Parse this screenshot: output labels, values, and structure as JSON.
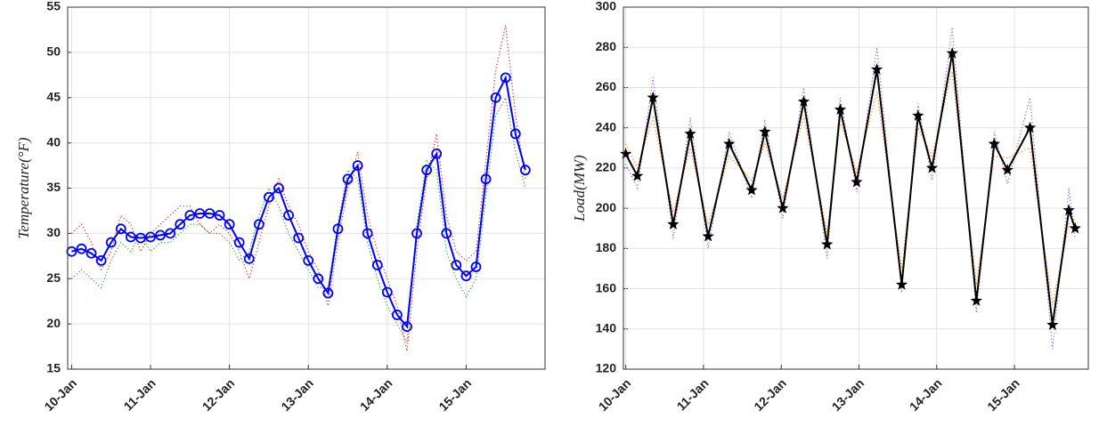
{
  "chart_data": [
    {
      "type": "line",
      "ylabel": "Temperature(°F)",
      "x": [
        10,
        10.125,
        10.25,
        10.375,
        10.5,
        10.625,
        10.75,
        10.875,
        11,
        11.125,
        11.25,
        11.375,
        11.5,
        11.625,
        11.75,
        11.875,
        12,
        12.125,
        12.25,
        12.375,
        12.5,
        12.625,
        12.75,
        12.875,
        13,
        13.125,
        13.25,
        13.375,
        13.5,
        13.625,
        13.75,
        13.875,
        14,
        14.125,
        14.25,
        14.375,
        14.5,
        14.625,
        14.75,
        14.875,
        15,
        15.125,
        15.25,
        15.375,
        15.5,
        15.625,
        15.75
      ],
      "series": [
        {
          "color": "#d62728",
          "linestyle": "dotted",
          "marker": "none",
          "values": [
            30,
            31,
            29,
            26,
            28,
            32,
            31,
            28,
            30,
            31,
            32,
            33,
            33,
            31,
            30,
            31,
            30,
            28,
            25,
            29,
            33,
            36,
            33,
            31,
            28,
            26,
            22,
            29,
            35,
            39,
            32,
            28,
            25,
            22,
            17,
            28,
            36,
            41,
            32,
            28,
            27,
            28,
            38,
            48,
            53,
            43,
            36
          ]
        },
        {
          "color": "#2ca02c",
          "linestyle": "dotted",
          "marker": "none",
          "values": [
            25,
            26,
            25,
            24,
            27,
            29,
            28,
            30,
            28,
            29,
            29,
            30,
            31,
            31,
            30,
            30,
            29,
            27,
            28,
            32,
            35,
            33,
            30,
            28,
            26,
            24,
            24,
            31,
            37,
            36,
            29,
            25,
            22,
            20,
            18,
            31,
            38,
            37,
            28,
            25,
            23,
            25,
            34,
            43,
            45,
            39,
            35
          ]
        },
        {
          "color": "#0000ff",
          "linestyle": "solid",
          "marker": "circle",
          "values": [
            28,
            28.3,
            27.8,
            27,
            29,
            30.5,
            29.6,
            29.5,
            29.6,
            29.8,
            30,
            31,
            32,
            32.2,
            32.2,
            32,
            31,
            29,
            27.2,
            31,
            34,
            35,
            32,
            29.5,
            27,
            25,
            23.4,
            30.5,
            36,
            37.5,
            30,
            26.5,
            23.5,
            21,
            19.7,
            30,
            37,
            38.8,
            30,
            26.5,
            25.3,
            26.3,
            36,
            45,
            47.2,
            41,
            37
          ]
        }
      ],
      "xlim": [
        9.95,
        16.0
      ],
      "ylim": [
        15,
        55
      ],
      "yticks": [
        15,
        20,
        25,
        30,
        35,
        40,
        45,
        50,
        55
      ],
      "xticks": [
        {
          "value": 10,
          "label": "10-Jan"
        },
        {
          "value": 11,
          "label": "11-Jan"
        },
        {
          "value": 12,
          "label": "12-Jan"
        },
        {
          "value": 13,
          "label": "13-Jan"
        },
        {
          "value": 14,
          "label": "14-Jan"
        },
        {
          "value": 15,
          "label": "15-Jan"
        }
      ],
      "grid": true
    },
    {
      "type": "line",
      "ylabel": "Load(MW)",
      "x": [
        10,
        10.15,
        10.35,
        10.61,
        10.83,
        11.06,
        11.33,
        11.62,
        11.79,
        12.02,
        12.29,
        12.59,
        12.76,
        12.97,
        13.23,
        13.55,
        13.76,
        13.94,
        14.2,
        14.51,
        14.74,
        14.91,
        15.2,
        15.49,
        15.7,
        15.78
      ],
      "series": [
        {
          "color": "#9467bd",
          "linestyle": "dotted",
          "marker": "none",
          "values": [
            222,
            210,
            265,
            185,
            245,
            180,
            238,
            205,
            244,
            195,
            260,
            175,
            255,
            208,
            280,
            158,
            252,
            214,
            290,
            148,
            238,
            212,
            255,
            130,
            210,
            185
          ]
        },
        {
          "color": "#ff7f0e",
          "linestyle": "dotted",
          "marker": "none",
          "values": [
            232,
            220,
            245,
            198,
            230,
            192,
            226,
            214,
            232,
            205,
            246,
            188,
            243,
            218,
            258,
            170,
            240,
            226,
            268,
            162,
            226,
            225,
            230,
            152,
            192,
            195
          ]
        },
        {
          "color": "#000000",
          "linestyle": "solid",
          "marker": "star",
          "values": [
            227,
            216,
            255,
            192,
            237,
            186,
            232,
            209,
            238,
            200,
            253,
            182,
            249,
            213,
            269,
            162,
            246,
            220,
            277,
            154,
            232,
            219,
            240,
            142,
            199,
            190
          ]
        }
      ],
      "xlim": [
        9.97,
        15.95
      ],
      "ylim": [
        120,
        300
      ],
      "yticks": [
        120,
        140,
        160,
        180,
        200,
        220,
        240,
        260,
        280,
        300
      ],
      "xticks": [
        {
          "value": 10,
          "label": "10-Jan"
        },
        {
          "value": 11,
          "label": "11-Jan"
        },
        {
          "value": 12,
          "label": "12-Jan"
        },
        {
          "value": 13,
          "label": "13-Jan"
        },
        {
          "value": 14,
          "label": "14-Jan"
        },
        {
          "value": 15,
          "label": "15-Jan"
        }
      ],
      "grid": true
    }
  ]
}
